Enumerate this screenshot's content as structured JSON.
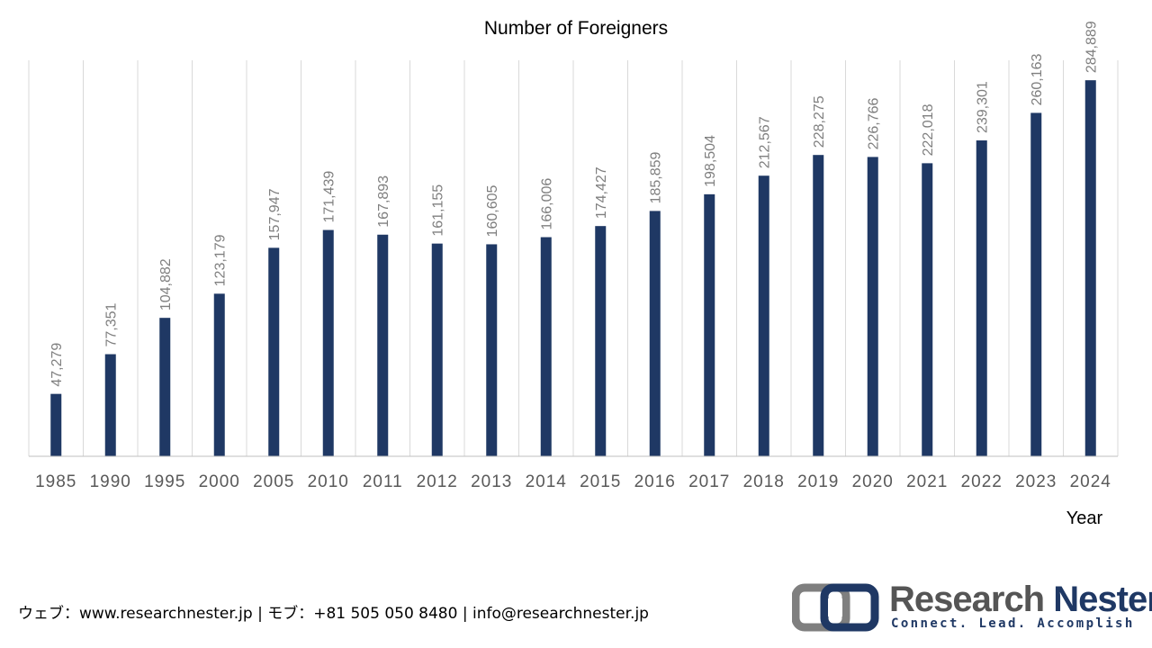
{
  "chart_data": {
    "type": "bar",
    "title": "Number of Foreigners",
    "xlabel": "Year",
    "ylabel": "",
    "categories": [
      "1985",
      "1990",
      "1995",
      "2000",
      "2005",
      "2010",
      "2011",
      "2012",
      "2013",
      "2014",
      "2015",
      "2016",
      "2017",
      "2018",
      "2019",
      "2020",
      "2021",
      "2022",
      "2023",
      "2024"
    ],
    "values": [
      47279,
      77351,
      104882,
      123179,
      157947,
      171439,
      167893,
      161155,
      160605,
      166006,
      174427,
      185859,
      198504,
      212567,
      228275,
      226766,
      222018,
      239301,
      260163,
      284889
    ],
    "value_labels": [
      "47,279",
      "77,351",
      "104,882",
      "123,179",
      "157,947",
      "171,439",
      "167,893",
      "161,155",
      "160,605",
      "166,006",
      "174,427",
      "185,859",
      "198,504",
      "212,567",
      "228,275",
      "226,766",
      "222,018",
      "239,301",
      "260,163",
      "284,889"
    ],
    "ylim": [
      0,
      300000
    ],
    "grid": "vertical",
    "legend": "none",
    "colors": {
      "bar": "#1f3864",
      "grid": "#d9d9d9",
      "axis": "#bfbfbf",
      "tick_label": "#595959",
      "data_label": "#7f7f7f"
    }
  },
  "footer": {
    "contact": "ウェブ：www.researchnester.jp | モブ：+81 505 050 8480 | info@researchnester.jp"
  },
  "logo": {
    "name_part1": "Research",
    "name_part2": "Nester",
    "tagline": "Connect. Lead. Accomplish",
    "colors": {
      "gray": "#595959",
      "navy": "#1f3864"
    }
  }
}
